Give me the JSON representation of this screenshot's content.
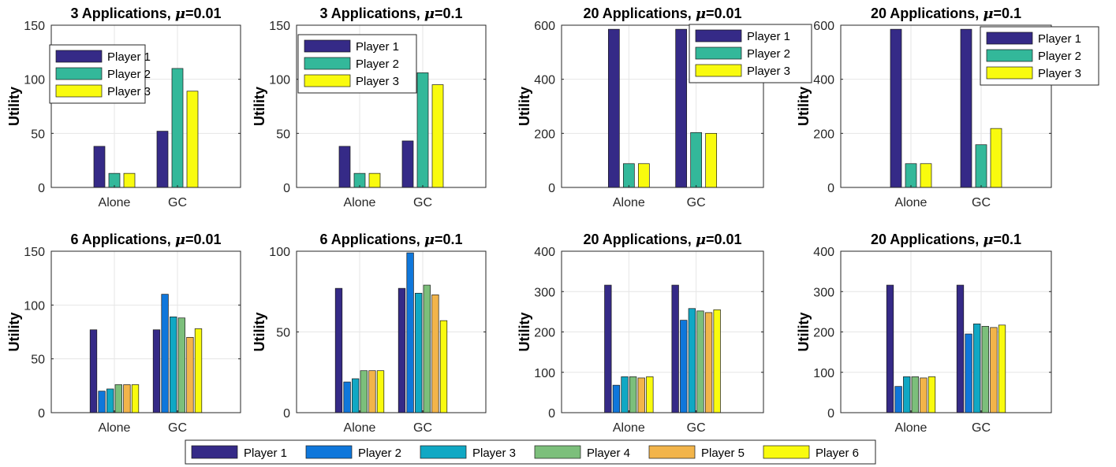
{
  "colors": {
    "player1": "#352a87",
    "player2": "#0f77db",
    "player3": "#10a8c4",
    "player4": "#7cbf7b",
    "player5": "#f2b44a",
    "player6": "#f9fb0e",
    "player2_three": "#33b89a",
    "player3_three": "#f9fb0e"
  },
  "bottom_legend": {
    "entries": [
      "Player 1",
      "Player 2",
      "Player 3",
      "Player 4",
      "Player 5",
      "Player 6"
    ]
  },
  "chart_data": [
    {
      "type": "bar",
      "title_prefix": "3 Applications, ",
      "mu_symbol": "μ",
      "title_suffix": "=0.01",
      "ylabel": "Utility",
      "categories": [
        "Alone",
        "GC"
      ],
      "ylim": [
        0,
        150
      ],
      "yticks": [
        0,
        50,
        100,
        150
      ],
      "grid": true,
      "legend_placement": "upper-left",
      "series": [
        {
          "name": "Player 1",
          "values": [
            38,
            52
          ]
        },
        {
          "name": "Player 2",
          "values": [
            13,
            110
          ]
        },
        {
          "name": "Player 3",
          "values": [
            13,
            89
          ]
        }
      ]
    },
    {
      "type": "bar",
      "title_prefix": "3 Applications, ",
      "mu_symbol": "μ",
      "title_suffix": "=0.1",
      "ylabel": "Utility",
      "categories": [
        "Alone",
        "GC"
      ],
      "ylim": [
        0,
        150
      ],
      "yticks": [
        0,
        50,
        100,
        150
      ],
      "grid": true,
      "legend_placement": "upper-left",
      "series": [
        {
          "name": "Player 1",
          "values": [
            38,
            43
          ]
        },
        {
          "name": "Player 2",
          "values": [
            13,
            106
          ]
        },
        {
          "name": "Player 3",
          "values": [
            13,
            95
          ]
        }
      ]
    },
    {
      "type": "bar",
      "title_prefix": "20 Applications, ",
      "mu_symbol": "μ",
      "title_suffix": "=0.01",
      "ylabel": "Utility",
      "categories": [
        "Alone",
        "GC"
      ],
      "ylim": [
        0,
        600
      ],
      "yticks": [
        0,
        200,
        400,
        600
      ],
      "grid": true,
      "legend_placement": "upper-right",
      "series": [
        {
          "name": "Player 1",
          "values": [
            585,
            585
          ]
        },
        {
          "name": "Player 2",
          "values": [
            88,
            203
          ]
        },
        {
          "name": "Player 3",
          "values": [
            88,
            200
          ]
        }
      ]
    },
    {
      "type": "bar",
      "title_prefix": "20 Applications, ",
      "mu_symbol": "μ",
      "title_suffix": "=0.1",
      "ylabel": "Utility",
      "categories": [
        "Alone",
        "GC"
      ],
      "ylim": [
        0,
        600
      ],
      "yticks": [
        0,
        200,
        400,
        600
      ],
      "grid": true,
      "legend_placement": "upper-right",
      "series": [
        {
          "name": "Player 1",
          "values": [
            585,
            585
          ]
        },
        {
          "name": "Player 2",
          "values": [
            88,
            158
          ]
        },
        {
          "name": "Player 3",
          "values": [
            88,
            218
          ]
        }
      ]
    },
    {
      "type": "bar",
      "title_prefix": "6 Applications, ",
      "mu_symbol": "μ",
      "title_suffix": "=0.01",
      "ylabel": "Utility",
      "categories": [
        "Alone",
        "GC"
      ],
      "ylim": [
        0,
        150
      ],
      "yticks": [
        0,
        50,
        100,
        150
      ],
      "grid": true,
      "series": [
        {
          "name": "Player 1",
          "values": [
            77,
            77
          ]
        },
        {
          "name": "Player 2",
          "values": [
            20,
            110
          ]
        },
        {
          "name": "Player 3",
          "values": [
            22,
            89
          ]
        },
        {
          "name": "Player 4",
          "values": [
            26,
            88
          ]
        },
        {
          "name": "Player 5",
          "values": [
            26,
            70
          ]
        },
        {
          "name": "Player 6",
          "values": [
            26,
            78
          ]
        }
      ]
    },
    {
      "type": "bar",
      "title_prefix": "6 Applications, ",
      "mu_symbol": "μ",
      "title_suffix": "=0.1",
      "ylabel": "Utility",
      "categories": [
        "Alone",
        "GC"
      ],
      "ylim": [
        0,
        100
      ],
      "yticks": [
        0,
        50,
        100
      ],
      "grid": true,
      "series": [
        {
          "name": "Player 1",
          "values": [
            77,
            77
          ]
        },
        {
          "name": "Player 2",
          "values": [
            19,
            99
          ]
        },
        {
          "name": "Player 3",
          "values": [
            21,
            74
          ]
        },
        {
          "name": "Player 4",
          "values": [
            26,
            79
          ]
        },
        {
          "name": "Player 5",
          "values": [
            26,
            73
          ]
        },
        {
          "name": "Player 6",
          "values": [
            26,
            57
          ]
        }
      ]
    },
    {
      "type": "bar",
      "title_prefix": "20 Applications, ",
      "mu_symbol": "μ",
      "title_suffix": "=0.01",
      "ylabel": "Utility",
      "categories": [
        "Alone",
        "GC"
      ],
      "ylim": [
        0,
        400
      ],
      "yticks": [
        0,
        100,
        200,
        300,
        400
      ],
      "grid": true,
      "series": [
        {
          "name": "Player 1",
          "values": [
            316,
            316
          ]
        },
        {
          "name": "Player 2",
          "values": [
            68,
            229
          ]
        },
        {
          "name": "Player 3",
          "values": [
            89,
            258
          ]
        },
        {
          "name": "Player 4",
          "values": [
            89,
            252
          ]
        },
        {
          "name": "Player 5",
          "values": [
            86,
            248
          ]
        },
        {
          "name": "Player 6",
          "values": [
            89,
            255
          ]
        }
      ]
    },
    {
      "type": "bar",
      "title_prefix": "20 Applications, ",
      "mu_symbol": "μ",
      "title_suffix": "=0.1",
      "ylabel": "Utility",
      "categories": [
        "Alone",
        "GC"
      ],
      "ylim": [
        0,
        400
      ],
      "yticks": [
        0,
        100,
        200,
        300,
        400
      ],
      "grid": true,
      "series": [
        {
          "name": "Player 1",
          "values": [
            316,
            316
          ]
        },
        {
          "name": "Player 2",
          "values": [
            65,
            195
          ]
        },
        {
          "name": "Player 3",
          "values": [
            89,
            220
          ]
        },
        {
          "name": "Player 4",
          "values": [
            89,
            214
          ]
        },
        {
          "name": "Player 5",
          "values": [
            86,
            211
          ]
        },
        {
          "name": "Player 6",
          "values": [
            89,
            217
          ]
        }
      ]
    }
  ]
}
